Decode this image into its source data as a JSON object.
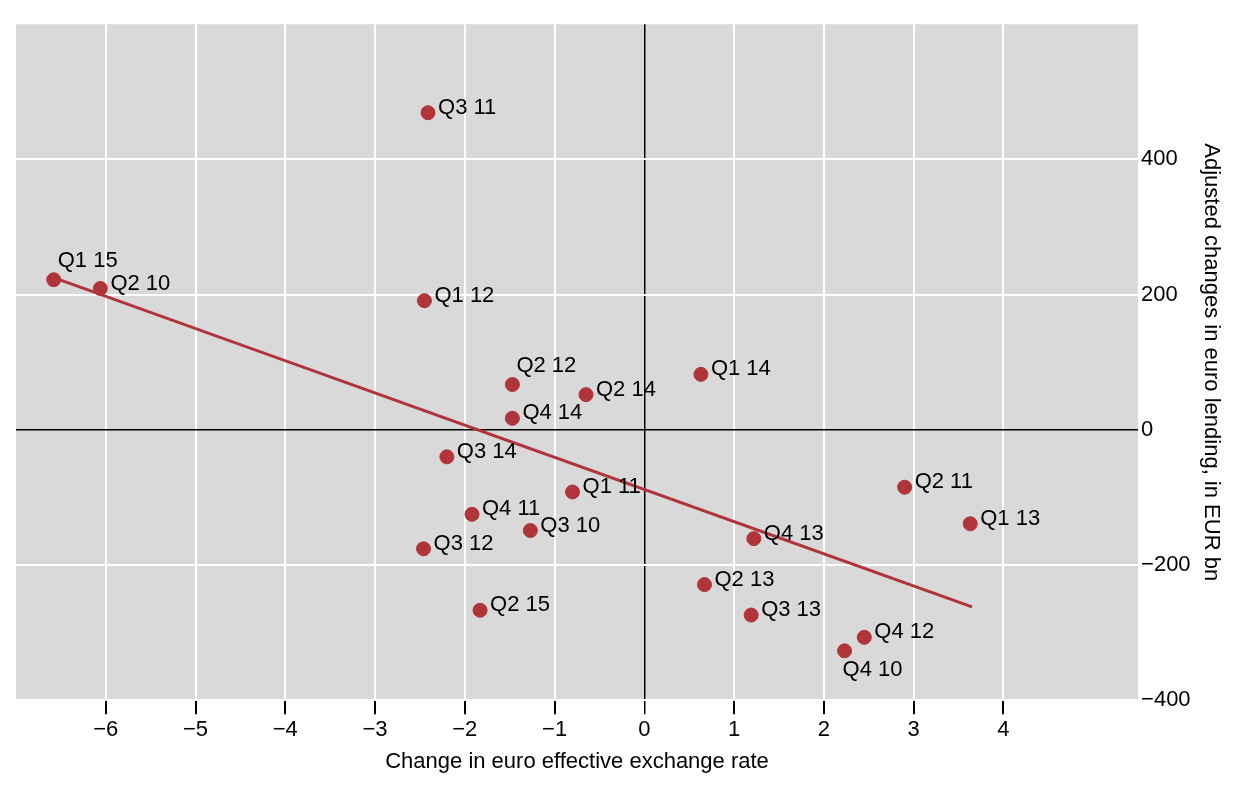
{
  "chart_data": {
    "type": "scatter",
    "xlabel": "Change in euro effective exchange rate",
    "ylabel": "Adjusted changes in euro lending, in EUR bn",
    "xlim": [
      -7,
      5.5
    ],
    "ylim": [
      -400,
      600
    ],
    "xticks": [
      {
        "value": -6,
        "label": "−6"
      },
      {
        "value": -5,
        "label": "−5"
      },
      {
        "value": -4,
        "label": "−4"
      },
      {
        "value": -3,
        "label": "−3"
      },
      {
        "value": -2,
        "label": "−2"
      },
      {
        "value": -1,
        "label": "−1"
      },
      0,
      1,
      2,
      3,
      4
    ],
    "yticks": [
      {
        "value": -400,
        "label": "−400"
      },
      {
        "value": -200,
        "label": "−200"
      },
      0,
      200,
      400
    ],
    "grid": true,
    "legend": false,
    "series": [
      {
        "marker": "circle",
        "color": "#b0343a",
        "x": [
          -2.41,
          -6.58,
          -6.06,
          -2.45,
          -1.47,
          -0.65,
          0.63,
          -1.47,
          -2.2,
          -0.8,
          2.9,
          -1.92,
          -1.27,
          3.63,
          1.22,
          -2.46,
          0.67,
          -1.83,
          1.19,
          2.45,
          2.23
        ],
        "values": [
          469,
          222,
          209,
          191,
          67,
          52,
          82,
          17,
          -40,
          -92,
          -85,
          -125,
          -149,
          -139,
          -161,
          -176,
          -229,
          -267,
          -274,
          -307,
          -327
        ],
        "value_labels": [
          "Q3 11",
          "Q1 15",
          "Q2 10",
          "Q1 12",
          "Q2 12",
          "Q2 14",
          "Q1 14",
          "Q4 14",
          "Q3 14",
          "Q1 11",
          "Q2 11",
          "Q4 11",
          "Q3 10",
          "Q1 13",
          "Q4 13",
          "Q3 12",
          "Q2 13",
          "Q2 15",
          "Q3 13",
          "Q4 12",
          "Q4 10"
        ]
      },
      {
        "type": "line",
        "color": "#b0343a",
        "x": [
          -6.58,
          3.65
        ],
        "values": [
          225,
          -262
        ]
      }
    ]
  }
}
